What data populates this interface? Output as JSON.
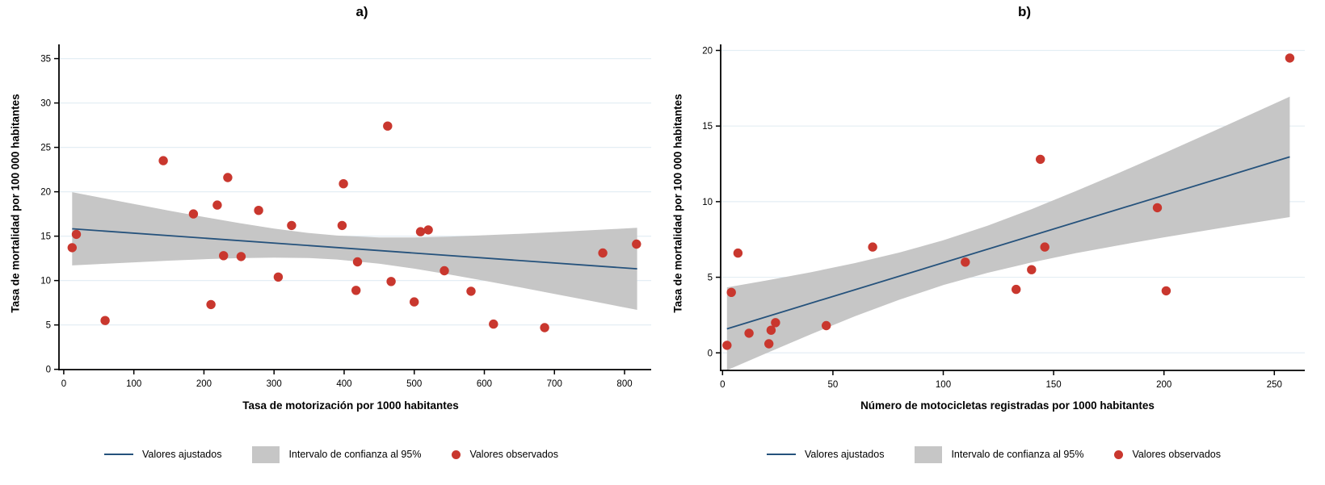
{
  "colors": {
    "fit_line": "#25527C",
    "ci_fill": "#C6C6C6",
    "point": "#C9372E",
    "gridline": "#E4EEF4",
    "axis": "#000000",
    "background": "#FFFFFF"
  },
  "legend": {
    "fitted_label": "Valores ajustados",
    "ci_label": "Intervalo de confianza al 95%",
    "observed_label": "Valores observados"
  },
  "chart_data": [
    {
      "type": "scatter",
      "title": "a)",
      "xlabel": "Tasa de motorización por 1000 habitantes",
      "ylabel": "Tasa de mortalidad por 100 000 habitantes",
      "xlim": [
        -6.8,
        838
      ],
      "ylim": [
        -0.03,
        36.6
      ],
      "x_ticks": [
        0,
        100,
        200,
        300,
        400,
        500,
        600,
        700,
        800
      ],
      "y_ticks": [
        0,
        5,
        10,
        15,
        20,
        25,
        30,
        35
      ],
      "grid": "horizontal",
      "legend_position": "bottom",
      "points": [
        [
          12,
          13.7
        ],
        [
          18,
          15.2
        ],
        [
          59,
          5.5
        ],
        [
          142,
          23.5
        ],
        [
          185,
          17.5
        ],
        [
          210,
          7.3
        ],
        [
          219,
          18.5
        ],
        [
          228,
          12.8
        ],
        [
          234,
          21.6
        ],
        [
          253,
          12.7
        ],
        [
          278,
          17.9
        ],
        [
          306,
          10.4
        ],
        [
          325,
          16.2
        ],
        [
          397,
          16.2
        ],
        [
          399,
          20.9
        ],
        [
          417,
          8.9
        ],
        [
          419,
          12.1
        ],
        [
          462,
          27.4
        ],
        [
          467,
          9.9
        ],
        [
          500,
          7.6
        ],
        [
          509,
          15.5
        ],
        [
          520,
          15.7
        ],
        [
          543,
          11.1
        ],
        [
          581,
          8.8
        ],
        [
          613,
          5.1
        ],
        [
          686,
          4.7
        ],
        [
          769,
          13.1
        ],
        [
          817,
          14.1
        ]
      ],
      "fit_line": {
        "x": [
          12,
          818
        ],
        "y": [
          15.83,
          11.32
        ]
      },
      "ci_band": [
        [
          12,
          11.7,
          19.96
        ],
        [
          50,
          11.86,
          19.38
        ],
        [
          100,
          12.05,
          18.63
        ],
        [
          150,
          12.24,
          17.88
        ],
        [
          200,
          12.4,
          17.16
        ],
        [
          250,
          12.52,
          16.48
        ],
        [
          300,
          12.58,
          15.86
        ],
        [
          350,
          12.53,
          15.35
        ],
        [
          390,
          12.37,
          15.07
        ],
        [
          450,
          11.9,
          14.86
        ],
        [
          500,
          11.34,
          14.86
        ],
        [
          550,
          10.69,
          14.95
        ],
        [
          600,
          9.98,
          15.1
        ],
        [
          650,
          9.25,
          15.27
        ],
        [
          700,
          8.5,
          15.46
        ],
        [
          750,
          7.74,
          15.66
        ],
        [
          818,
          6.7,
          15.94
        ]
      ]
    },
    {
      "type": "scatter",
      "title": "b)",
      "xlabel": "Número de motocicletas registradas por 1000 habitantes",
      "ylabel": "Tasa de mortalidad por 100 000 habitantes",
      "xlim": [
        -0.85,
        263.8
      ],
      "ylim": [
        -1.16,
        20.4
      ],
      "x_ticks": [
        0,
        50,
        100,
        150,
        200,
        250
      ],
      "y_ticks": [
        0,
        5,
        10,
        15,
        20
      ],
      "grid": "horizontal",
      "legend_position": "bottom",
      "points": [
        [
          2,
          0.5
        ],
        [
          4,
          4.0
        ],
        [
          7,
          6.6
        ],
        [
          12,
          1.3
        ],
        [
          21,
          0.6
        ],
        [
          22,
          1.5
        ],
        [
          24,
          2.0
        ],
        [
          47,
          1.8
        ],
        [
          68,
          7.0
        ],
        [
          110,
          6.0
        ],
        [
          133,
          4.2
        ],
        [
          140,
          5.5
        ],
        [
          144,
          12.8
        ],
        [
          146,
          7.0
        ],
        [
          197,
          9.6
        ],
        [
          201,
          4.1
        ],
        [
          257,
          19.5
        ]
      ],
      "fit_line": {
        "x": [
          2,
          257
        ],
        "y": [
          1.59,
          12.96
        ]
      },
      "ci_band": [
        [
          2,
          -1.15,
          4.33
        ],
        [
          20,
          -0.01,
          4.79
        ],
        [
          40,
          1.23,
          5.33
        ],
        [
          60,
          2.42,
          5.94
        ],
        [
          80,
          3.51,
          6.63
        ],
        [
          100,
          4.48,
          7.44
        ],
        [
          120,
          5.29,
          8.41
        ],
        [
          140,
          5.98,
          9.5
        ],
        [
          160,
          6.59,
          10.69
        ],
        [
          180,
          7.13,
          11.93
        ],
        [
          200,
          7.64,
          13.2
        ],
        [
          230,
          8.36,
          15.16
        ],
        [
          257,
          8.98,
          16.94
        ]
      ]
    }
  ]
}
